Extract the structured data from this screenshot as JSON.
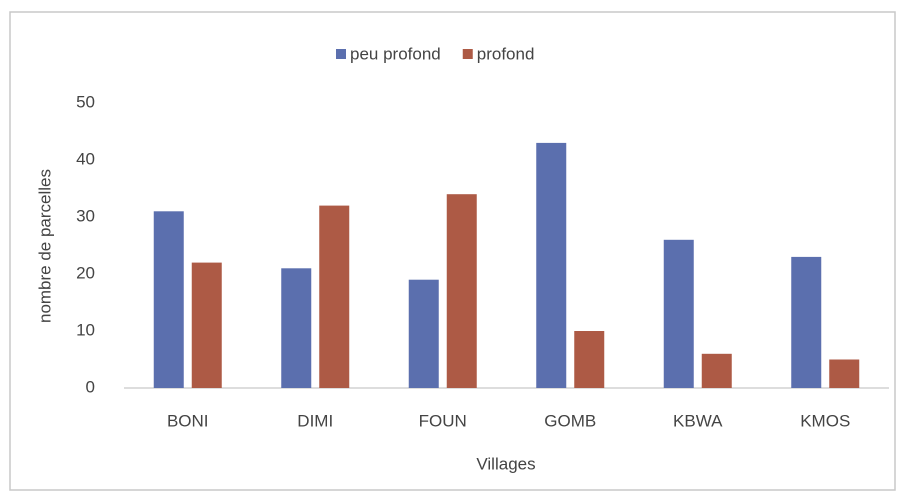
{
  "chart_data": {
    "type": "bar",
    "categories": [
      "BONI",
      "DIMI",
      "FOUN",
      "GOMB",
      "KBWA",
      "KMOS"
    ],
    "series": [
      {
        "name": "peu profond",
        "color": "#5b6fae",
        "values": [
          31,
          21,
          19,
          43,
          26,
          23
        ]
      },
      {
        "name": "profond",
        "color": "#ad5a45",
        "values": [
          22,
          32,
          34,
          10,
          6,
          5
        ]
      }
    ],
    "xlabel": "Villages",
    "ylabel": "nombre de parcelles",
    "ylim": [
      0,
      50
    ],
    "yticks": [
      0,
      10,
      20,
      30,
      40,
      50
    ],
    "grid": false,
    "legend": "top"
  }
}
